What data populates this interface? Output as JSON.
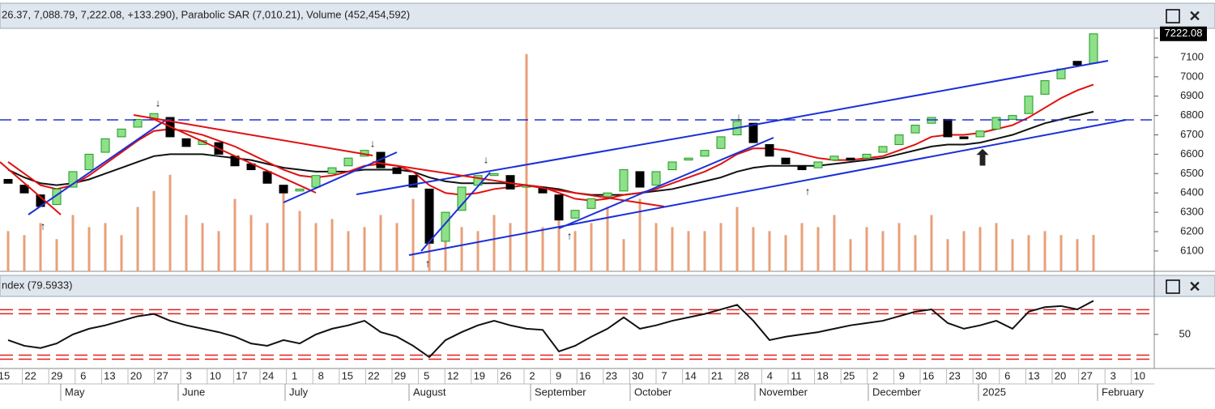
{
  "header": "26.37, 7,088.79, 7,222.08, +133.290), Parabolic SAR (7,010.21), Volume (452,454,592)",
  "chart_data": {
    "type": "candlestick",
    "open": [
      6470,
      6440,
      6390,
      6340,
      6430,
      6520,
      6610,
      6690,
      6740,
      6780,
      6790,
      6680,
      6650,
      6660,
      6590,
      6550,
      6510,
      6440,
      6410,
      6430,
      6500,
      6540,
      6590,
      6610,
      6530,
      6490,
      6420,
      6150,
      6310,
      6440,
      6490,
      6490,
      6430,
      6430,
      6390,
      6270,
      6320,
      6380,
      6410,
      6510,
      6440,
      6520,
      6570,
      6590,
      6630,
      6700,
      6760,
      6650,
      6580,
      6540,
      6530,
      6570,
      6580,
      6580,
      6610,
      6650,
      6710,
      6760,
      6780,
      6690,
      6690,
      6730,
      6780,
      6810,
      6910,
      6990,
      7080,
      7070
    ],
    "close": [
      6450,
      6400,
      6330,
      6420,
      6510,
      6600,
      6680,
      6730,
      6780,
      6810,
      6690,
      6640,
      6670,
      6600,
      6540,
      6520,
      6450,
      6400,
      6420,
      6490,
      6530,
      6580,
      6620,
      6530,
      6500,
      6430,
      6140,
      6300,
      6430,
      6490,
      6500,
      6420,
      6440,
      6400,
      6260,
      6310,
      6370,
      6400,
      6520,
      6430,
      6510,
      6560,
      6580,
      6620,
      6690,
      6770,
      6660,
      6590,
      6550,
      6520,
      6560,
      6590,
      6570,
      6600,
      6640,
      6700,
      6750,
      6790,
      6690,
      6680,
      6720,
      6790,
      6800,
      6900,
      6980,
      7040,
      7060,
      7222.08
    ],
    "ma_red": [
      6560,
      6500,
      6440,
      6420,
      6440,
      6490,
      6550,
      6610,
      6670,
      6720,
      6730,
      6720,
      6700,
      6670,
      6640,
      6600,
      6560,
      6520,
      6490,
      6480,
      6490,
      6510,
      6540,
      6550,
      6540,
      6510,
      6440,
      6400,
      6390,
      6400,
      6420,
      6430,
      6440,
      6430,
      6400,
      6370,
      6360,
      6370,
      6390,
      6400,
      6420,
      6450,
      6480,
      6510,
      6550,
      6600,
      6630,
      6630,
      6620,
      6600,
      6580,
      6570,
      6570,
      6580,
      6590,
      6620,
      6650,
      6690,
      6700,
      6700,
      6710,
      6730,
      6750,
      6790,
      6840,
      6890,
      6930,
      6960
    ],
    "ma_black": [
      6520,
      6480,
      6450,
      6440,
      6450,
      6470,
      6500,
      6530,
      6560,
      6590,
      6600,
      6600,
      6600,
      6590,
      6580,
      6570,
      6550,
      6530,
      6520,
      6510,
      6510,
      6510,
      6520,
      6520,
      6520,
      6510,
      6480,
      6460,
      6450,
      6450,
      6450,
      6450,
      6440,
      6430,
      6420,
      6400,
      6390,
      6390,
      6390,
      6400,
      6410,
      6420,
      6440,
      6460,
      6480,
      6510,
      6530,
      6540,
      6540,
      6540,
      6540,
      6550,
      6560,
      6570,
      6580,
      6600,
      6620,
      6640,
      6650,
      6650,
      6660,
      6680,
      6700,
      6730,
      6760,
      6780,
      6800,
      6820
    ],
    "volume": [
      500000000,
      450000000,
      600000000,
      400000000,
      700000000,
      550000000,
      600000000,
      450000000,
      800000000,
      1000000000,
      1200000000,
      700000000,
      600000000,
      500000000,
      900000000,
      700000000,
      600000000,
      1000000000,
      750000000,
      600000000,
      650000000,
      500000000,
      550000000,
      700000000,
      600000000,
      900000000,
      800000000,
      600000000,
      550000000,
      500000000,
      700000000,
      600000000,
      2700000000,
      550000000,
      700000000,
      500000000,
      600000000,
      800000000,
      400000000,
      900000000,
      600000000,
      550000000,
      500000000,
      500000000,
      600000000,
      800000000,
      550000000,
      500000000,
      450000000,
      600000000,
      550000000,
      700000000,
      400000000,
      550000000,
      500000000,
      600000000,
      450000000,
      700000000,
      400000000,
      500000000,
      550000000,
      600000000,
      400000000,
      450000000,
      500000000,
      450000000,
      400000000,
      452454592
    ],
    "volume_lim": [
      0,
      3000000000
    ],
    "ylim": [
      5995,
      7242
    ],
    "yticks": [
      6100,
      6200,
      6300,
      6400,
      6500,
      6600,
      6700,
      6800,
      6900,
      7000,
      7100,
      7200
    ],
    "up_color": "#1f9a1f",
    "down_color": "#000000",
    "volume_color": "#e8a07a",
    "ma_red_color": "#e01010",
    "ma_black_color": "#111111"
  },
  "rsi": {
    "title": "ndex (79.5933)",
    "values": [
      45,
      40,
      38,
      42,
      50,
      55,
      58,
      62,
      66,
      68,
      62,
      58,
      55,
      52,
      48,
      42,
      40,
      45,
      42,
      50,
      55,
      58,
      62,
      52,
      48,
      40,
      30,
      45,
      52,
      58,
      62,
      58,
      55,
      54,
      35,
      40,
      48,
      55,
      65,
      55,
      58,
      62,
      65,
      68,
      72,
      76,
      62,
      45,
      48,
      50,
      52,
      55,
      58,
      60,
      62,
      66,
      70,
      72,
      60,
      55,
      58,
      62,
      55,
      70,
      74,
      75,
      72,
      79.5933
    ],
    "ylim": [
      20,
      82
    ],
    "yticks": [
      50
    ],
    "bands": [
      70,
      30
    ],
    "color": "#111111",
    "band_color": "#e02020"
  },
  "x_axis": {
    "days": [
      "15",
      "22",
      "29",
      "6",
      "13",
      "20",
      "27",
      "3",
      "10",
      "17",
      "24",
      "1",
      "8",
      "15",
      "22",
      "29",
      "5",
      "12",
      "19",
      "26",
      "2",
      "9",
      "16",
      "23",
      "30",
      "7",
      "14",
      "21",
      "28",
      "4",
      "11",
      "18",
      "25",
      "2",
      "9",
      "16",
      "23",
      "30",
      "6",
      "13",
      "20",
      "27",
      "3",
      "10"
    ],
    "months": [
      "May",
      "June",
      "July",
      "August",
      "September",
      "October",
      "November",
      "December",
      "2025",
      "February"
    ]
  }
}
